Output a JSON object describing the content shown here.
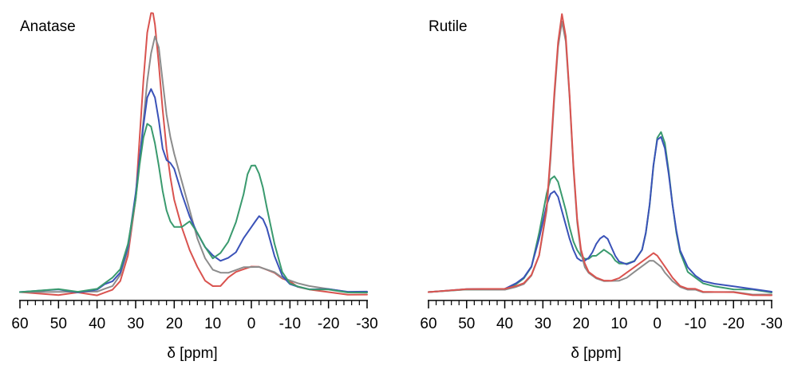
{
  "chart_data": [
    {
      "type": "line",
      "title": "Anatase",
      "xlabel": "δ [ppm]",
      "ylabel": "",
      "xlim": [
        60,
        -30
      ],
      "x_reversed": true,
      "y_axis_shown": false,
      "grid": false,
      "legend": "none",
      "ticks": {
        "labels": [
          "60",
          "50",
          "40",
          "30",
          "20",
          "10",
          "0",
          "-10",
          "-20",
          "-30"
        ],
        "values": [
          60,
          50,
          40,
          30,
          20,
          10,
          0,
          -10,
          -20,
          -30
        ],
        "minor_step": 2
      },
      "series": [
        {
          "color": "#d9534f",
          "x": [
            60,
            50,
            45,
            40,
            38,
            36,
            34,
            32,
            30,
            29,
            28,
            27,
            26,
            25.5,
            25,
            24,
            23,
            22,
            21,
            20,
            18,
            16,
            14,
            12,
            10,
            8,
            6,
            4,
            2,
            0,
            -2,
            -4,
            -6,
            -8,
            -10,
            -12,
            -15,
            -20,
            -25,
            -30
          ],
          "y": [
            0.01,
            0.0,
            0.01,
            0.0,
            0.01,
            0.02,
            0.05,
            0.14,
            0.34,
            0.55,
            0.76,
            0.93,
            1.0,
            1.0,
            0.96,
            0.82,
            0.66,
            0.52,
            0.42,
            0.34,
            0.24,
            0.16,
            0.1,
            0.05,
            0.03,
            0.03,
            0.06,
            0.08,
            0.09,
            0.1,
            0.1,
            0.09,
            0.08,
            0.06,
            0.05,
            0.03,
            0.02,
            0.01,
            0.0,
            0.0
          ]
        },
        {
          "color": "#8c8c8c",
          "x": [
            60,
            50,
            45,
            40,
            38,
            36,
            34,
            32,
            30,
            29,
            28,
            27,
            26,
            25,
            24,
            23,
            22,
            21,
            20,
            18,
            16,
            14,
            12,
            10,
            8,
            6,
            4,
            2,
            0,
            -2,
            -4,
            -6,
            -8,
            -10,
            -12,
            -15,
            -20,
            -25,
            -30
          ],
          "y": [
            0.01,
            0.01,
            0.01,
            0.01,
            0.02,
            0.03,
            0.07,
            0.16,
            0.34,
            0.47,
            0.62,
            0.76,
            0.86,
            0.92,
            0.88,
            0.76,
            0.64,
            0.56,
            0.5,
            0.4,
            0.3,
            0.2,
            0.13,
            0.09,
            0.08,
            0.08,
            0.09,
            0.1,
            0.1,
            0.1,
            0.09,
            0.08,
            0.06,
            0.05,
            0.04,
            0.03,
            0.02,
            0.01,
            0.01
          ]
        },
        {
          "color": "#3a52b8",
          "x": [
            60,
            50,
            45,
            40,
            38,
            36,
            34,
            32,
            30,
            29,
            28,
            27,
            26,
            25,
            24,
            23,
            22,
            21,
            20,
            18,
            16,
            14,
            12,
            10,
            8,
            6,
            4,
            2,
            0,
            -1,
            -2,
            -3,
            -4,
            -6,
            -8,
            -10,
            -12,
            -15,
            -20,
            -25,
            -30
          ],
          "y": [
            0.01,
            0.02,
            0.01,
            0.02,
            0.04,
            0.05,
            0.08,
            0.17,
            0.36,
            0.48,
            0.6,
            0.7,
            0.73,
            0.7,
            0.62,
            0.52,
            0.48,
            0.47,
            0.45,
            0.36,
            0.28,
            0.22,
            0.17,
            0.14,
            0.12,
            0.13,
            0.15,
            0.2,
            0.24,
            0.26,
            0.28,
            0.27,
            0.24,
            0.14,
            0.07,
            0.04,
            0.03,
            0.02,
            0.02,
            0.01,
            0.01
          ]
        },
        {
          "color": "#3a9a6e",
          "x": [
            60,
            50,
            45,
            40,
            38,
            36,
            34,
            32,
            30,
            29,
            28,
            27,
            26,
            25,
            24,
            23,
            22,
            21,
            20,
            18,
            16,
            14,
            12,
            10,
            8,
            6,
            4,
            2,
            1,
            0,
            -1,
            -2,
            -3,
            -4,
            -6,
            -8,
            -10,
            -12,
            -15,
            -20,
            -25,
            -30
          ],
          "y": [
            0.01,
            0.02,
            0.01,
            0.02,
            0.04,
            0.06,
            0.09,
            0.18,
            0.34,
            0.46,
            0.56,
            0.61,
            0.6,
            0.54,
            0.46,
            0.37,
            0.3,
            0.26,
            0.24,
            0.24,
            0.26,
            0.22,
            0.17,
            0.13,
            0.15,
            0.19,
            0.26,
            0.36,
            0.43,
            0.46,
            0.46,
            0.43,
            0.38,
            0.31,
            0.18,
            0.08,
            0.04,
            0.03,
            0.02,
            0.02,
            0.01,
            0.01
          ]
        }
      ]
    },
    {
      "type": "line",
      "title": "Rutile",
      "xlabel": "δ [ppm]",
      "ylabel": "",
      "xlim": [
        60,
        -30
      ],
      "x_reversed": true,
      "y_axis_shown": false,
      "grid": false,
      "legend": "none",
      "ticks": {
        "labels": [
          "60",
          "50",
          "40",
          "30",
          "20",
          "10",
          "0",
          "-10",
          "-20",
          "-30"
        ],
        "values": [
          60,
          50,
          40,
          30,
          20,
          10,
          0,
          -10,
          -20,
          -30
        ],
        "minor_step": 2
      },
      "series": [
        {
          "color": "#3a9a6e",
          "x": [
            60,
            50,
            45,
            40,
            37,
            35,
            33,
            31,
            29,
            28,
            27,
            26,
            25,
            24,
            23,
            22,
            21,
            20,
            19,
            18,
            17,
            16,
            15,
            14,
            13,
            12,
            11,
            10,
            8,
            6,
            4,
            3,
            2,
            1,
            0,
            -1,
            -2,
            -3,
            -4,
            -5,
            -6,
            -8,
            -10,
            -12,
            -15,
            -20,
            -25,
            -30
          ],
          "y": [
            0.01,
            0.02,
            0.02,
            0.02,
            0.04,
            0.06,
            0.1,
            0.22,
            0.36,
            0.41,
            0.42,
            0.4,
            0.35,
            0.3,
            0.24,
            0.19,
            0.16,
            0.14,
            0.13,
            0.13,
            0.14,
            0.14,
            0.15,
            0.16,
            0.15,
            0.14,
            0.12,
            0.11,
            0.11,
            0.12,
            0.16,
            0.22,
            0.32,
            0.46,
            0.56,
            0.58,
            0.54,
            0.44,
            0.32,
            0.22,
            0.15,
            0.08,
            0.06,
            0.04,
            0.03,
            0.02,
            0.02,
            0.01
          ]
        },
        {
          "color": "#3a52b8",
          "x": [
            60,
            50,
            45,
            40,
            37,
            35,
            33,
            31,
            29,
            28,
            27,
            26,
            25,
            24,
            23,
            22,
            21,
            20,
            19,
            18,
            17,
            16,
            15,
            14,
            13,
            12,
            11,
            10,
            8,
            6,
            4,
            3,
            2,
            1,
            0,
            -1,
            -2,
            -3,
            -4,
            -5,
            -6,
            -8,
            -10,
            -12,
            -15,
            -20,
            -25,
            -30
          ],
          "y": [
            0.01,
            0.02,
            0.02,
            0.02,
            0.04,
            0.06,
            0.1,
            0.2,
            0.32,
            0.36,
            0.37,
            0.35,
            0.3,
            0.25,
            0.2,
            0.16,
            0.13,
            0.12,
            0.12,
            0.13,
            0.15,
            0.18,
            0.2,
            0.21,
            0.2,
            0.17,
            0.14,
            0.12,
            0.11,
            0.12,
            0.16,
            0.22,
            0.32,
            0.46,
            0.55,
            0.56,
            0.52,
            0.43,
            0.32,
            0.23,
            0.16,
            0.1,
            0.07,
            0.05,
            0.04,
            0.03,
            0.02,
            0.01
          ]
        },
        {
          "color": "#8c8c8c",
          "x": [
            60,
            50,
            45,
            40,
            37,
            35,
            33,
            31,
            29,
            28,
            27,
            26,
            25,
            24,
            23,
            22,
            21,
            20,
            19,
            18,
            16,
            14,
            12,
            10,
            8,
            6,
            4,
            2,
            1,
            0,
            -1,
            -2,
            -4,
            -6,
            -8,
            -10,
            -12,
            -15,
            -20,
            -25,
            -30
          ],
          "y": [
            0.01,
            0.02,
            0.02,
            0.02,
            0.03,
            0.04,
            0.07,
            0.14,
            0.3,
            0.48,
            0.7,
            0.88,
            0.97,
            0.9,
            0.7,
            0.45,
            0.26,
            0.15,
            0.1,
            0.08,
            0.06,
            0.05,
            0.05,
            0.05,
            0.06,
            0.08,
            0.1,
            0.12,
            0.12,
            0.11,
            0.1,
            0.08,
            0.05,
            0.03,
            0.02,
            0.02,
            0.01,
            0.01,
            0.01,
            0.0,
            0.0
          ]
        },
        {
          "color": "#d9534f",
          "x": [
            60,
            50,
            45,
            40,
            37,
            35,
            33,
            31,
            29,
            28,
            27,
            26,
            25,
            24,
            23,
            22,
            21,
            20,
            19,
            18,
            16,
            14,
            12,
            10,
            8,
            6,
            4,
            2,
            1,
            0,
            -1,
            -2,
            -4,
            -6,
            -8,
            -10,
            -12,
            -15,
            -20,
            -25,
            -30
          ],
          "y": [
            0.01,
            0.02,
            0.02,
            0.02,
            0.03,
            0.04,
            0.07,
            0.14,
            0.31,
            0.5,
            0.72,
            0.9,
            1.0,
            0.92,
            0.71,
            0.46,
            0.27,
            0.16,
            0.11,
            0.08,
            0.06,
            0.05,
            0.05,
            0.06,
            0.08,
            0.1,
            0.12,
            0.14,
            0.15,
            0.14,
            0.12,
            0.1,
            0.06,
            0.03,
            0.02,
            0.02,
            0.01,
            0.01,
            0.01,
            0.0,
            0.0
          ]
        }
      ]
    }
  ]
}
